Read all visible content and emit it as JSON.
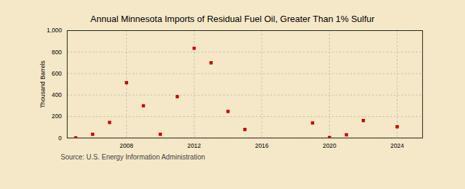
{
  "chart_data": {
    "type": "scatter",
    "title": "Annual Minnesota Imports of Residual Fuel Oil, Greater Than 1% Sulfur",
    "ylabel": "Thousand Barrels",
    "annotations": [
      "Source: U.S. Energy Information Administration"
    ],
    "x": [
      2005,
      2006,
      2007,
      2008,
      2009,
      2010,
      2011,
      2012,
      2013,
      2014,
      2015,
      2019,
      2020,
      2021,
      2022,
      2024
    ],
    "values": [
      2,
      35,
      145,
      515,
      300,
      35,
      385,
      835,
      700,
      248,
      80,
      140,
      5,
      30,
      163,
      105
    ],
    "color": "#cc0000",
    "marker": "square",
    "xlim": [
      2004.5,
      2025.5
    ],
    "xticks": [
      2008,
      2012,
      2016,
      2020,
      2024
    ],
    "ylim": [
      0,
      1000
    ],
    "yticks": [
      0,
      200,
      400,
      600,
      800,
      {
        "value": 1000,
        "label": "1,000"
      }
    ],
    "grid": true
  }
}
